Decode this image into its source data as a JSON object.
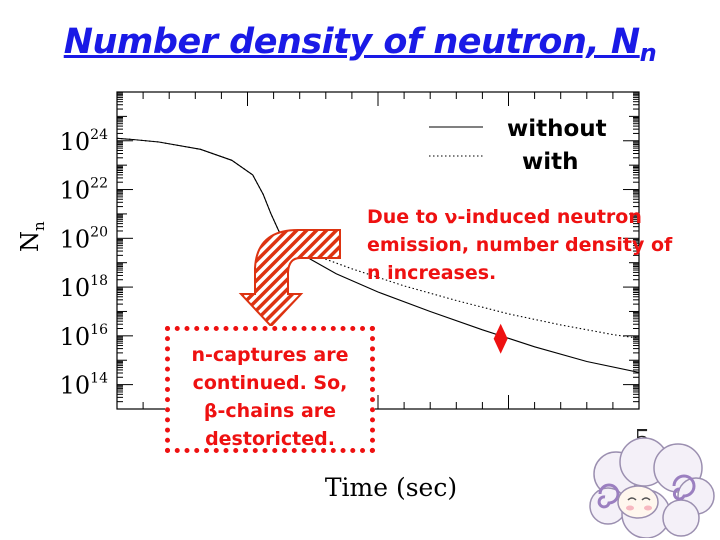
{
  "slide": {
    "title_main": "Number density of neutron, N",
    "title_sub": "n",
    "page_number": "5"
  },
  "annotations": {
    "neutron_emission": [
      "Due to ν-induced neutron",
      "emission, number density of",
      "n increases."
    ],
    "box_text": [
      "n-captures are",
      "continued. So,",
      "β-chains are",
      "destoricted."
    ]
  },
  "colors": {
    "title": "#1a1ae6",
    "annotation": "#ee1111",
    "axes": "#000000"
  },
  "chart_data": {
    "type": "line",
    "xlabel": "Time (sec)",
    "ylabel_main": "N",
    "ylabel_sub": "n",
    "yscale": "log",
    "ylim": [
      10000000000000.0,
      1e+26
    ],
    "ytick_exponents": [
      14,
      16,
      18,
      20,
      22,
      24
    ],
    "x_tick_labels": [],
    "legend_position": "top-right",
    "series": [
      {
        "name": "without",
        "style": "solid",
        "points": [
          [
            0.0,
            24.1
          ],
          [
            0.03,
            24.05
          ],
          [
            0.08,
            23.95
          ],
          [
            0.16,
            23.65
          ],
          [
            0.22,
            23.2
          ],
          [
            0.26,
            22.6
          ],
          [
            0.28,
            21.8
          ],
          [
            0.295,
            21.0
          ],
          [
            0.31,
            20.3
          ],
          [
            0.33,
            19.85
          ],
          [
            0.37,
            19.15
          ],
          [
            0.42,
            18.55
          ],
          [
            0.5,
            17.8
          ],
          [
            0.6,
            17.0
          ],
          [
            0.7,
            16.25
          ],
          [
            0.8,
            15.55
          ],
          [
            0.9,
            14.95
          ],
          [
            1.0,
            14.5
          ]
        ]
      },
      {
        "name": "with",
        "style": "dotted",
        "points": [
          [
            0.0,
            24.1
          ],
          [
            0.03,
            24.05
          ],
          [
            0.08,
            23.95
          ],
          [
            0.16,
            23.65
          ],
          [
            0.22,
            23.2
          ],
          [
            0.26,
            22.6
          ],
          [
            0.28,
            21.8
          ],
          [
            0.295,
            21.0
          ],
          [
            0.31,
            20.3
          ],
          [
            0.33,
            19.85
          ],
          [
            0.38,
            19.3
          ],
          [
            0.45,
            18.75
          ],
          [
            0.55,
            18.05
          ],
          [
            0.65,
            17.45
          ],
          [
            0.75,
            16.9
          ],
          [
            0.85,
            16.45
          ],
          [
            0.95,
            16.05
          ],
          [
            1.0,
            15.9
          ]
        ]
      }
    ],
    "marker": {
      "shape": "diamond",
      "color": "#ee1111",
      "point": [
        0.735,
        15.88
      ]
    }
  }
}
